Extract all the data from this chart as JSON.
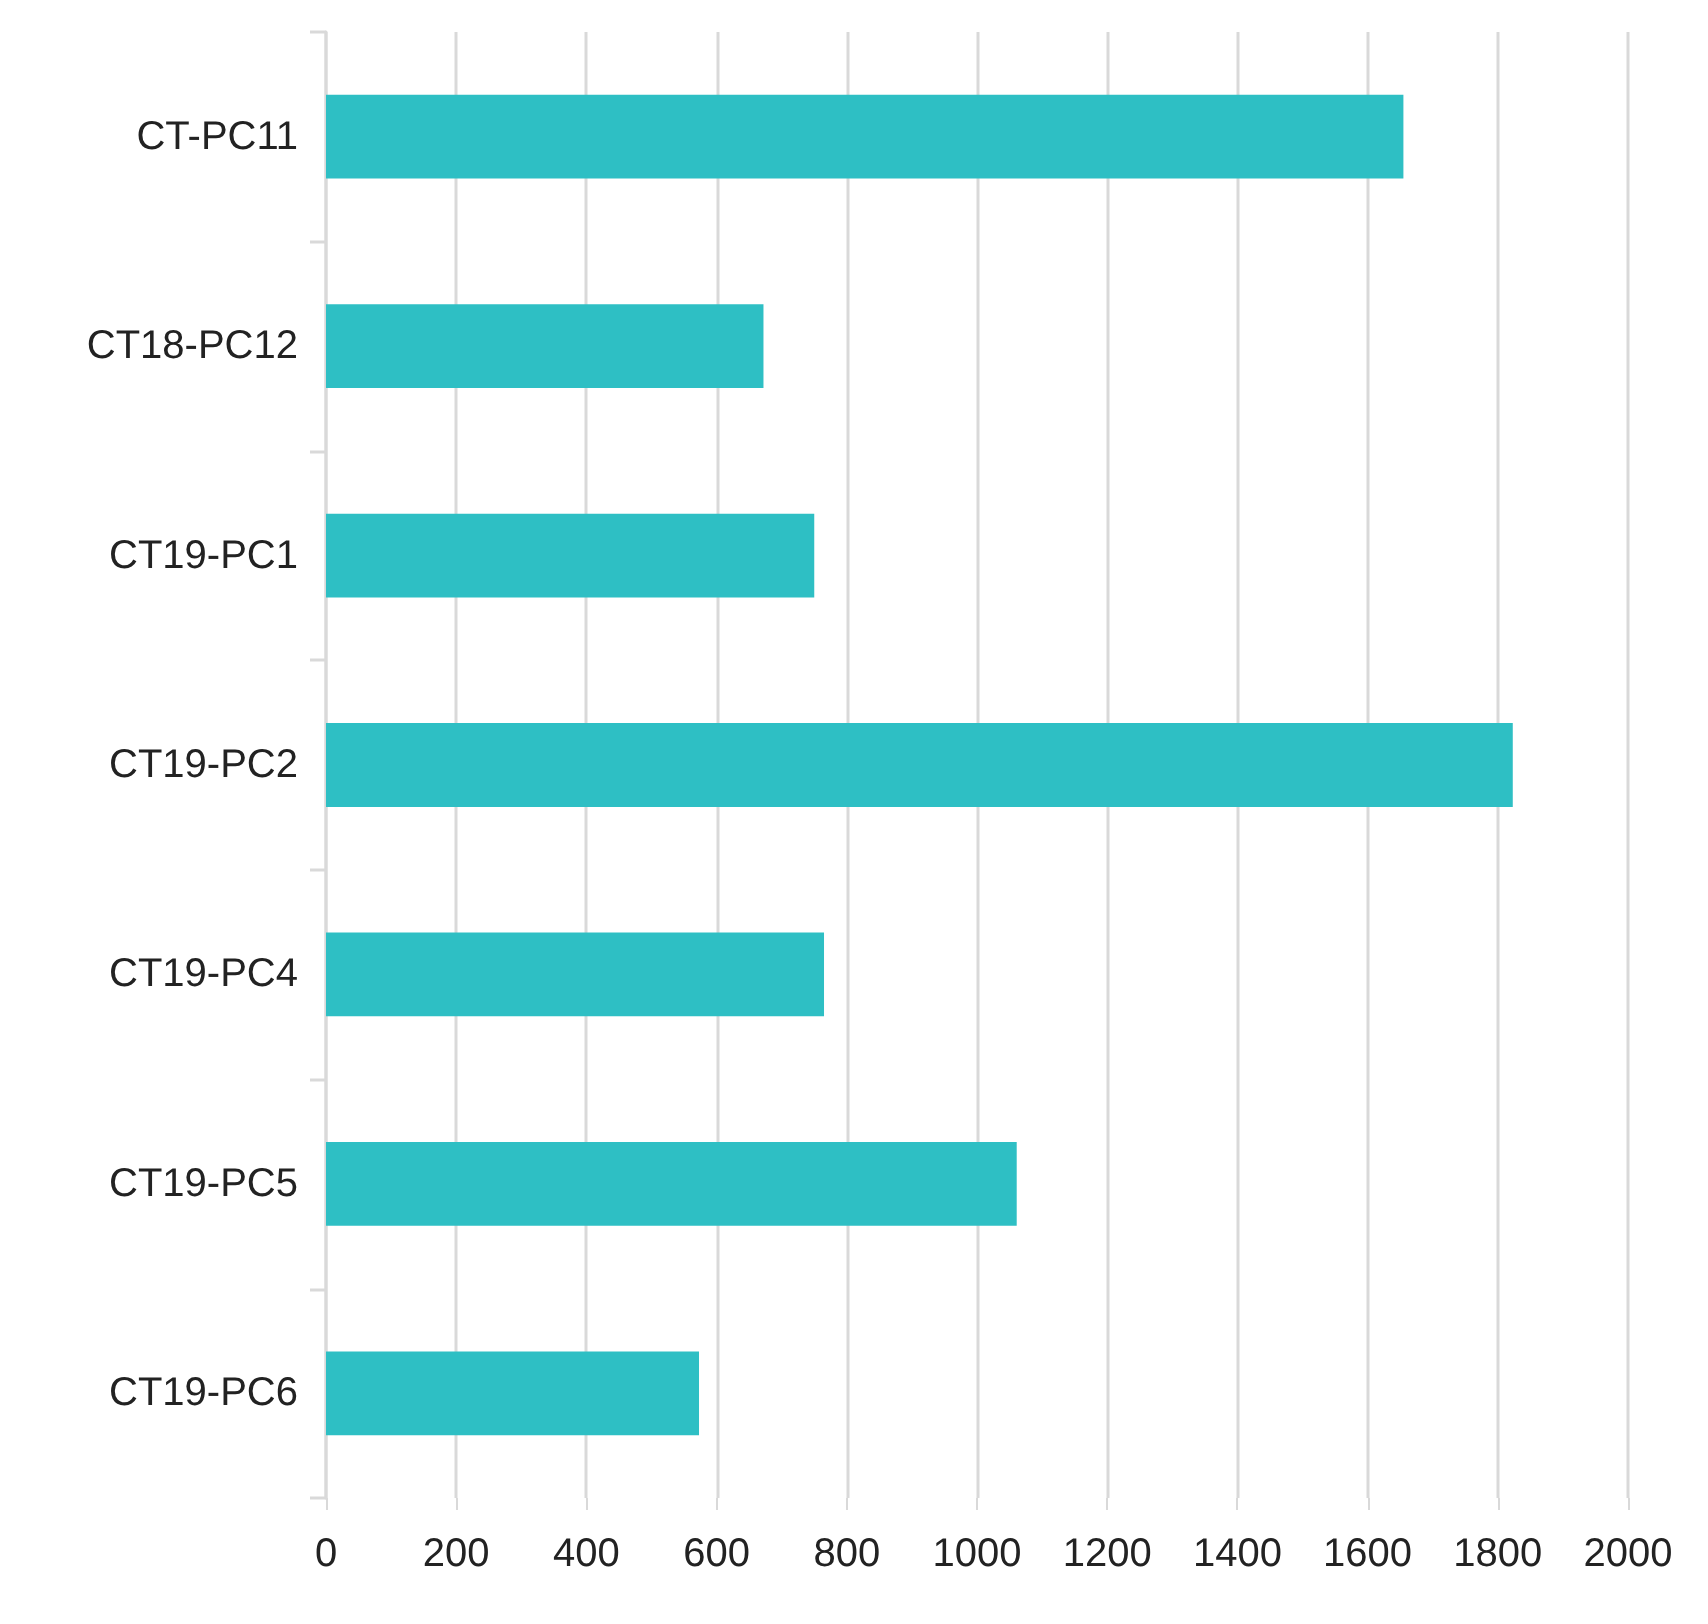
{
  "chart_data": {
    "type": "bar",
    "orientation": "horizontal",
    "categories": [
      "CT-PC11",
      "CT18-PC12",
      "CT19-PC1",
      "CT19-PC2",
      "CT19-PC4",
      "CT19-PC5",
      "CT19-PC6"
    ],
    "values": [
      1655,
      672,
      750,
      1823,
      765,
      1061,
      573
    ],
    "color": "#2ebfc4",
    "xlim": [
      0,
      2000
    ],
    "xticks": [
      0,
      200,
      400,
      600,
      800,
      1000,
      1200,
      1400,
      1600,
      1800,
      2000
    ],
    "grid": "x"
  }
}
